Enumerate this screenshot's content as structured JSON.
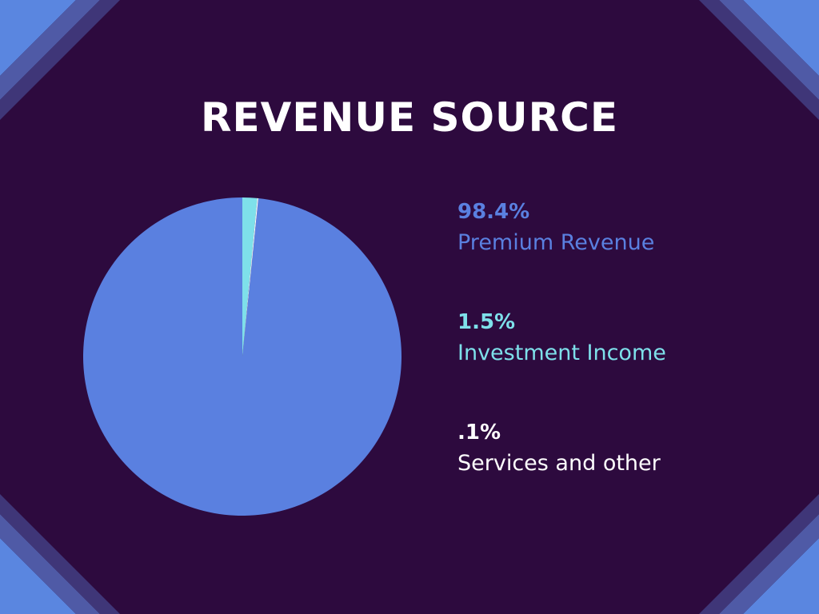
{
  "colors": {
    "background": "#2d0a3e",
    "stripe_light": "#5a86e0",
    "stripe_mid": "#4f5aa6",
    "stripe_dark": "#3f3678",
    "title": "#ffffff"
  },
  "chart_data": {
    "type": "pie",
    "title": "REVENUE SOURCE",
    "slices": [
      {
        "label": "Premium Revenue",
        "value_label": "98.4%",
        "value": 98.4,
        "color": "#5a80e0"
      },
      {
        "label": "Investment Income",
        "value_label": "1.5%",
        "value": 1.5,
        "color": "#7ee0ea"
      },
      {
        "label": "Services and other",
        "value_label": ".1%",
        "value": 0.1,
        "color": "#ffffff"
      }
    ],
    "legend_position": "right"
  }
}
